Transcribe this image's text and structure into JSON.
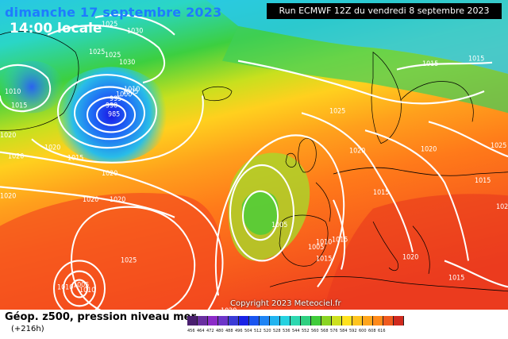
{
  "header": {
    "date": "dimanche 17 septembre 2023",
    "local_time": "14:00 locale",
    "run_info": "Run ECMWF 12Z du vendredi 8 septembre 2023"
  },
  "footer": {
    "title": "Géop. z500, pression niveau mer",
    "lead": "(+216h)",
    "copyright": "Copyright 2023 Meteociel.fr"
  },
  "colors": {
    "deep_blue": "#1a1ae6",
    "cyan": "#29cfe0",
    "green": "#33cc33",
    "yellow": "#ffd21e",
    "orange": "#ff8c1a",
    "red": "#f0441e",
    "isobar": "#ffffff",
    "coast": "#000000"
  },
  "scale": {
    "values": [
      "456",
      "464",
      "472",
      "480",
      "488",
      "496",
      "504",
      "512",
      "520",
      "528",
      "536",
      "544",
      "552",
      "560",
      "568",
      "576",
      "584",
      "592",
      "600",
      "608",
      "616"
    ],
    "colors": [
      "#4a1f6f",
      "#6a2fa0",
      "#8c2bc8",
      "#6d35c9",
      "#3b3bd6",
      "#1a22e6",
      "#1a55f0",
      "#1f84f5",
      "#22b4f0",
      "#26d2e0",
      "#2ed8b0",
      "#2fd080",
      "#40cc3a",
      "#8ad423",
      "#cde01e",
      "#ffe21e",
      "#ffc41e",
      "#ffa51c",
      "#ff8a1a",
      "#f05a1e",
      "#d02a1e"
    ]
  },
  "pressure_labels": [
    "1025",
    "1030",
    "1025",
    "1030",
    "1010",
    "1015",
    "1020",
    "1020",
    "1015",
    "985",
    "990",
    "995",
    "1000",
    "1005",
    "1010",
    "1020",
    "1025",
    "1015",
    "1015",
    "1020",
    "1020",
    "1020",
    "1020",
    "1025",
    "1015",
    "1020",
    "1025",
    "1005",
    "1010",
    "1015",
    "1015",
    "1020",
    "1005",
    "1005",
    "1010",
    "1010",
    "1015",
    "1025",
    "1020",
    "1020",
    "1015",
    "1025"
  ]
}
